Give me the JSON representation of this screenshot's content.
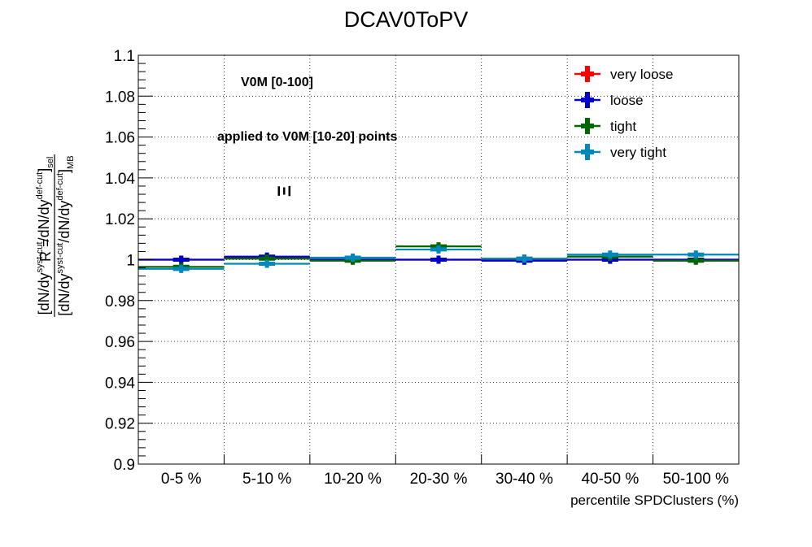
{
  "chart_data": {
    "type": "scatter",
    "title": "DCAV0ToPV",
    "xlabel": "percentile SPDClusters (%)",
    "ylabel_parts": {
      "lhs": "R =",
      "num_main_1": "[dN/dy",
      "num_sup_1": "syst-cut",
      "num_main_2": "/dN/dy",
      "num_sup_2": "def-cut",
      "num_main_3": "]",
      "num_sub": "sel",
      "den_main_1": "[dN/dy",
      "den_sup_1": "syst-cut",
      "den_main_2": "/dN/dy",
      "den_sup_2": "def-cut",
      "den_main_3": "]",
      "den_sub": "MB"
    },
    "categories": [
      "0-5 %",
      "5-10 %",
      "10-20 %",
      "20-30 %",
      "30-40 %",
      "40-50 %",
      "50-100 %"
    ],
    "yticks": [
      "0.9",
      "0.92",
      "0.94",
      "0.96",
      "0.98",
      "1",
      "1.02",
      "1.04",
      "1.06",
      "1.08",
      "1.1"
    ],
    "ylim": [
      0.9,
      1.1
    ],
    "grid": true,
    "legend_position": "top-right",
    "annotations": {
      "estimator": "V0M [0-100]",
      "applied": "applied to V0M [10-20] points",
      "particle": "Ξ"
    },
    "series": [
      {
        "name": "very loose",
        "color": "#ff0000",
        "values": [
          1.0,
          1.001,
          1.0,
          1.0,
          1.0,
          1.0,
          1.0
        ],
        "errors": [
          0.002,
          0.002,
          0.002,
          0.002,
          0.002,
          0.002,
          0.002
        ]
      },
      {
        "name": "loose",
        "color": "#0000cc",
        "values": [
          1.0,
          1.0015,
          1.0,
          1.0,
          0.9995,
          1.0,
          1.0
        ],
        "errors": [
          0.002,
          0.002,
          0.002,
          0.002,
          0.002,
          0.002,
          0.002
        ]
      },
      {
        "name": "tight",
        "color": "#006600",
        "values": [
          0.9965,
          1.0005,
          0.9995,
          1.0065,
          1.0005,
          1.0015,
          0.9995
        ],
        "errors": [
          0.002,
          0.002,
          0.002,
          0.002,
          0.002,
          0.002,
          0.002
        ]
      },
      {
        "name": "very tight",
        "color": "#0088bb",
        "values": [
          0.9955,
          0.998,
          1.001,
          1.005,
          1.0005,
          1.0025,
          1.0025
        ],
        "errors": [
          0.002,
          0.002,
          0.002,
          0.002,
          0.002,
          0.002,
          0.002
        ]
      }
    ]
  }
}
